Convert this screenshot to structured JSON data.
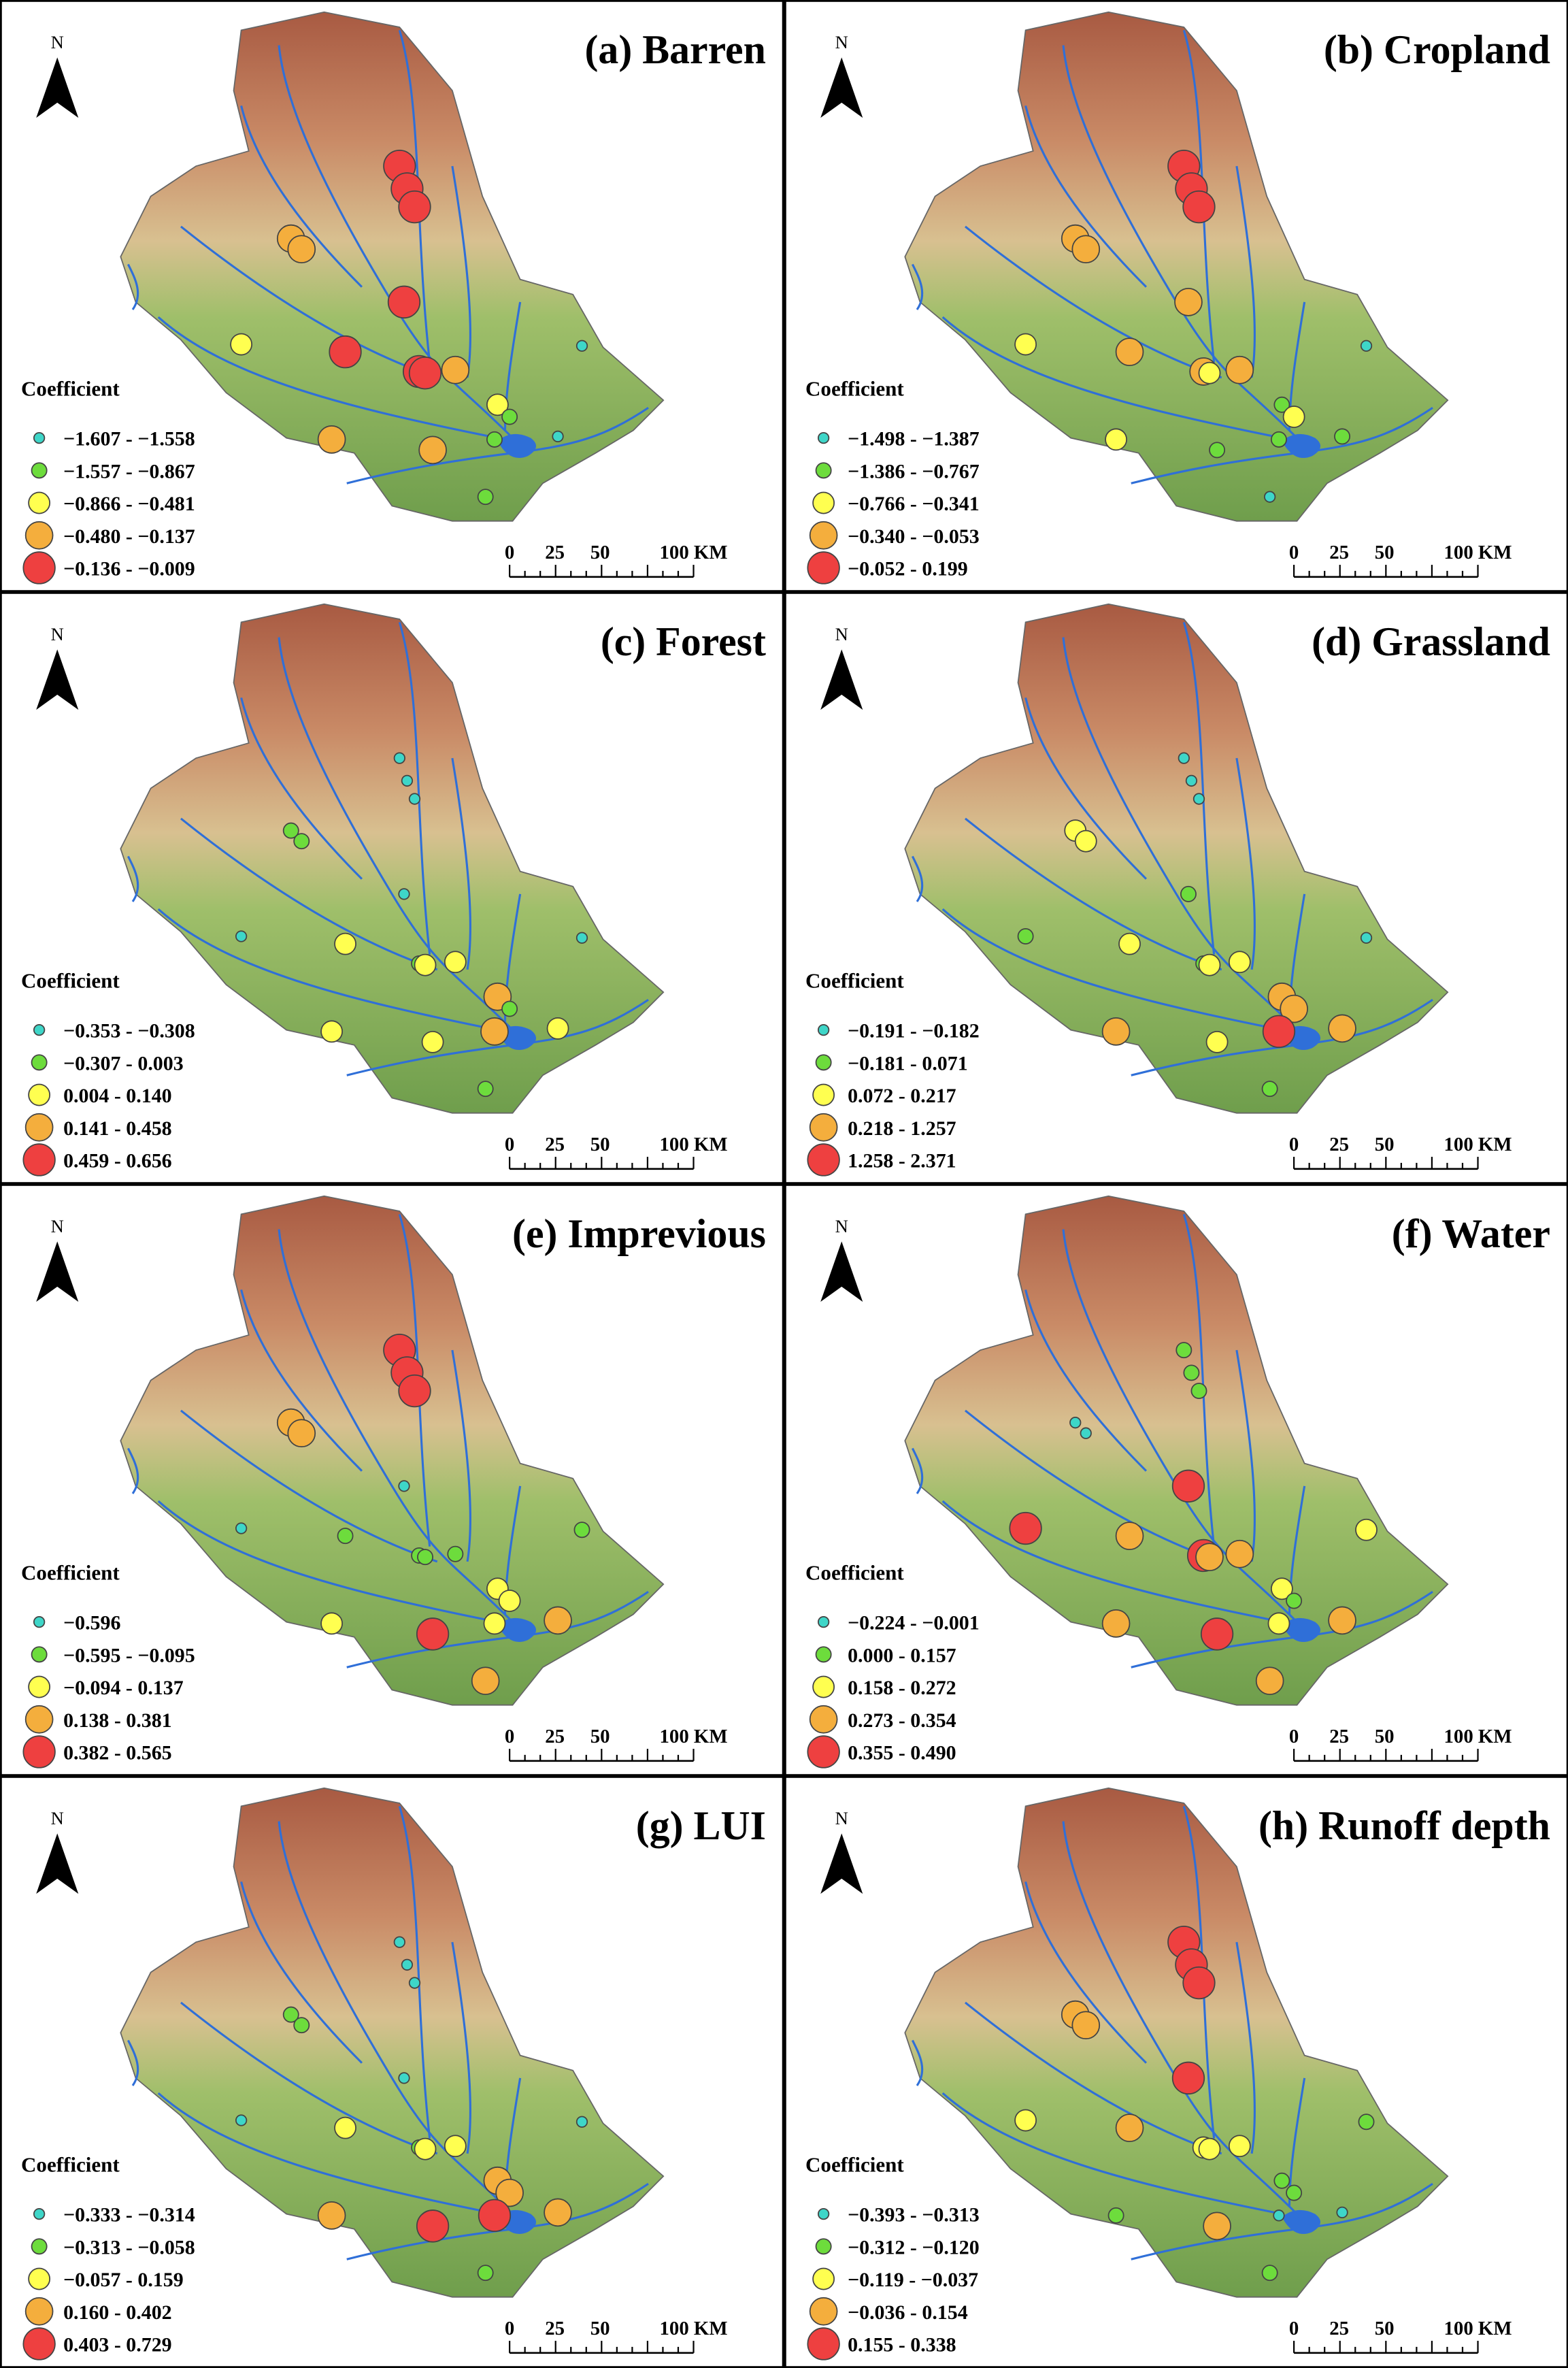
{
  "panels": [
    {
      "title": "(a) Barren",
      "legend_title": "Coefficient",
      "legend": [
        "−1.607 - −1.558",
        "−1.557 - −0.867",
        "−0.866 - −0.481",
        "−0.480 - −0.137",
        "−0.136 - −0.009"
      ],
      "scale": [
        "0",
        "25",
        "50",
        "100 KM"
      ],
      "north": "N"
    },
    {
      "title": "(b) Cropland",
      "legend_title": "Coefficient",
      "legend": [
        "−1.498 - −1.387",
        "−1.386 - −0.767",
        "−0.766 - −0.341",
        "−0.340 - −0.053",
        "−0.052 - 0.199"
      ],
      "scale": [
        "0",
        "25",
        "50",
        "100 KM"
      ],
      "north": "N"
    },
    {
      "title": "(c) Forest",
      "legend_title": "Coefficient",
      "legend": [
        "−0.353 - −0.308",
        "−0.307 - 0.003",
        "0.004 - 0.140",
        "0.141 - 0.458",
        "0.459 - 0.656"
      ],
      "scale": [
        "0",
        "25",
        "50",
        "100 KM"
      ],
      "north": "N"
    },
    {
      "title": "(d) Grassland",
      "legend_title": "Coefficient",
      "legend": [
        "−0.191 - −0.182",
        "−0.181 - 0.071",
        "0.072 - 0.217",
        "0.218 - 1.257",
        "1.258 - 2.371"
      ],
      "scale": [
        "0",
        "25",
        "50",
        "100 KM"
      ],
      "north": "N"
    },
    {
      "title": "(e) Imprevious",
      "legend_title": "Coefficient",
      "legend": [
        "−0.596",
        "−0.595 - −0.095",
        "−0.094 - 0.137",
        "0.138 - 0.381",
        "0.382 - 0.565"
      ],
      "scale": [
        "0",
        "25",
        "50",
        "100 KM"
      ],
      "north": "N"
    },
    {
      "title": "(f) Water",
      "legend_title": "Coefficient",
      "legend": [
        "−0.224 - −0.001",
        "0.000 - 0.157",
        "0.158 - 0.272",
        "0.273 - 0.354",
        "0.355 - 0.490"
      ],
      "scale": [
        "0",
        "25",
        "50",
        "100 KM"
      ],
      "north": "N"
    },
    {
      "title": "(g) LUI",
      "legend_title": "Coefficient",
      "legend": [
        "−0.333 - −0.314",
        "−0.313 - −0.058",
        "−0.057 - 0.159",
        "0.160 - 0.402",
        "0.403 - 0.729"
      ],
      "scale": [
        "0",
        "25",
        "50",
        "100 KM"
      ],
      "north": "N"
    },
    {
      "title": "(h) Runoff depth",
      "legend_title": "Coefficient",
      "legend": [
        "−0.393 - −0.313",
        "−0.312 - −0.120",
        "−0.119 - −0.037",
        "−0.036 - 0.154",
        "0.155 - 0.338"
      ],
      "scale": [
        "0",
        "25",
        "50",
        "100 KM"
      ],
      "north": "N"
    }
  ]
}
